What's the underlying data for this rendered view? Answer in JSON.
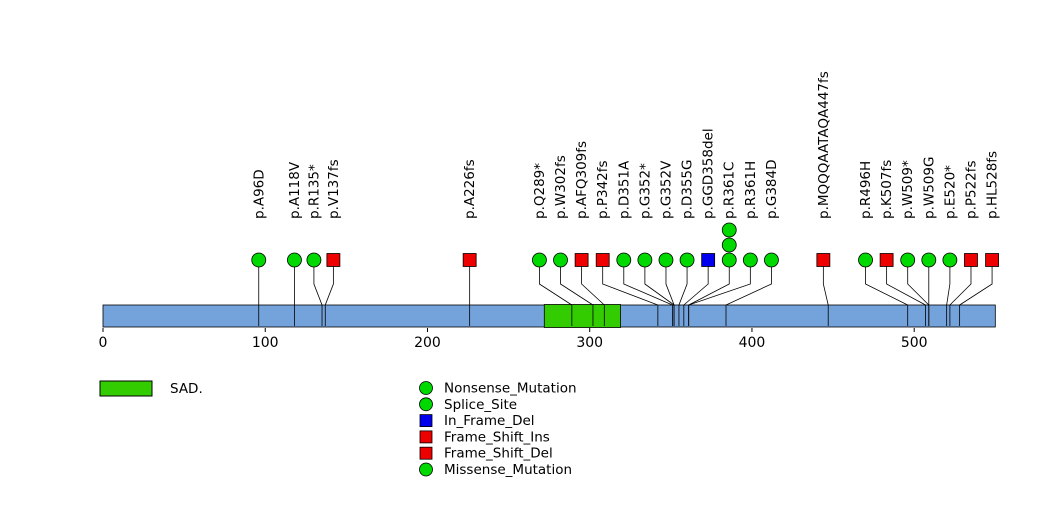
{
  "chart_data": {
    "type": "lollipop",
    "title": "",
    "xlabel": "",
    "ylabel": "",
    "protein": {
      "length": 550,
      "color": "#74A3DC"
    },
    "axis": {
      "ticks": [
        0,
        100,
        200,
        300,
        400,
        500
      ],
      "xlim": [
        0,
        550
      ],
      "grid": false
    },
    "domains": [
      {
        "name": "SAD.",
        "start": 272,
        "end": 319,
        "color": "#33CC00"
      }
    ],
    "marker_colors": {
      "green": "#00D900",
      "red": "#EE0000",
      "blue": "#0000EE"
    },
    "mutations": [
      {
        "label": "p.A96D",
        "pos": 96,
        "lollipop_pos": 96,
        "shape": "circle",
        "color": "green",
        "count": 1
      },
      {
        "label": "p.A118V",
        "pos": 118,
        "lollipop_pos": 118,
        "shape": "circle",
        "color": "green",
        "count": 1
      },
      {
        "label": "p.R135*",
        "pos": 135,
        "lollipop_pos": 130,
        "shape": "circle",
        "color": "green",
        "count": 1
      },
      {
        "label": "p.V137fs",
        "pos": 137,
        "lollipop_pos": 142,
        "shape": "square",
        "color": "red",
        "count": 1
      },
      {
        "label": "p.A226fs",
        "pos": 226,
        "lollipop_pos": 226,
        "shape": "square",
        "color": "red",
        "count": 1
      },
      {
        "label": "p.Q289*",
        "pos": 289,
        "lollipop_pos": 269,
        "shape": "circle",
        "color": "green",
        "count": 1
      },
      {
        "label": "p.W302fs",
        "pos": 302,
        "lollipop_pos": 282,
        "shape": "circle",
        "color": "green",
        "count": 1
      },
      {
        "label": "p.AFQ309fs",
        "pos": 309,
        "lollipop_pos": 295,
        "shape": "square",
        "color": "red",
        "count": 1
      },
      {
        "label": "p.P342fs",
        "pos": 342,
        "lollipop_pos": 308,
        "shape": "square",
        "color": "red",
        "count": 1
      },
      {
        "label": "p.D351A",
        "pos": 351,
        "lollipop_pos": 321,
        "shape": "circle",
        "color": "green",
        "count": 1
      },
      {
        "label": "p.G352*",
        "pos": 352,
        "lollipop_pos": 334,
        "shape": "circle",
        "color": "green",
        "count": 1
      },
      {
        "label": "p.G352V",
        "pos": 352,
        "lollipop_pos": 347,
        "shape": "circle",
        "color": "green",
        "count": 1
      },
      {
        "label": "p.D355G",
        "pos": 355,
        "lollipop_pos": 360,
        "shape": "circle",
        "color": "green",
        "count": 1
      },
      {
        "label": "p.GGD358del",
        "pos": 358,
        "lollipop_pos": 373,
        "shape": "square",
        "color": "blue",
        "count": 1
      },
      {
        "label": "p.R361C",
        "pos": 361,
        "lollipop_pos": 386,
        "shape": "circle",
        "color": "green",
        "count": 3
      },
      {
        "label": "p.R361H",
        "pos": 361,
        "lollipop_pos": 399,
        "shape": "circle",
        "color": "green",
        "count": 1
      },
      {
        "label": "p.G384D",
        "pos": 384,
        "lollipop_pos": 412,
        "shape": "circle",
        "color": "green",
        "count": 1
      },
      {
        "label": "p.MQQQAATAQA447fs",
        "pos": 447,
        "lollipop_pos": 444,
        "shape": "square",
        "color": "red",
        "count": 1
      },
      {
        "label": "p.R496H",
        "pos": 496,
        "lollipop_pos": 470,
        "shape": "circle",
        "color": "green",
        "count": 1
      },
      {
        "label": "p.K507fs",
        "pos": 507,
        "lollipop_pos": 483,
        "shape": "square",
        "color": "red",
        "count": 1
      },
      {
        "label": "p.W509*",
        "pos": 509,
        "lollipop_pos": 496,
        "shape": "circle",
        "color": "green",
        "count": 1
      },
      {
        "label": "p.W509G",
        "pos": 509,
        "lollipop_pos": 509,
        "shape": "circle",
        "color": "green",
        "count": 1
      },
      {
        "label": "p.E520*",
        "pos": 520,
        "lollipop_pos": 522,
        "shape": "circle",
        "color": "green",
        "count": 1
      },
      {
        "label": "p.P522fs",
        "pos": 522,
        "lollipop_pos": 535,
        "shape": "square",
        "color": "red",
        "count": 1
      },
      {
        "label": "p.HL528fs",
        "pos": 528,
        "lollipop_pos": 548,
        "shape": "square",
        "color": "red",
        "count": 1
      }
    ],
    "legend": {
      "domain_label": "SAD.",
      "items": [
        {
          "label": "Nonsense_Mutation",
          "shape": "circle",
          "color": "green"
        },
        {
          "label": "Splice_Site",
          "shape": "circle",
          "color": "green"
        },
        {
          "label": "In_Frame_Del",
          "shape": "square",
          "color": "blue"
        },
        {
          "label": "Frame_Shift_Ins",
          "shape": "square",
          "color": "red"
        },
        {
          "label": "Frame_Shift_Del",
          "shape": "square",
          "color": "red"
        },
        {
          "label": "Missense_Mutation",
          "shape": "circle",
          "color": "green"
        }
      ],
      "position": "bottom"
    }
  }
}
